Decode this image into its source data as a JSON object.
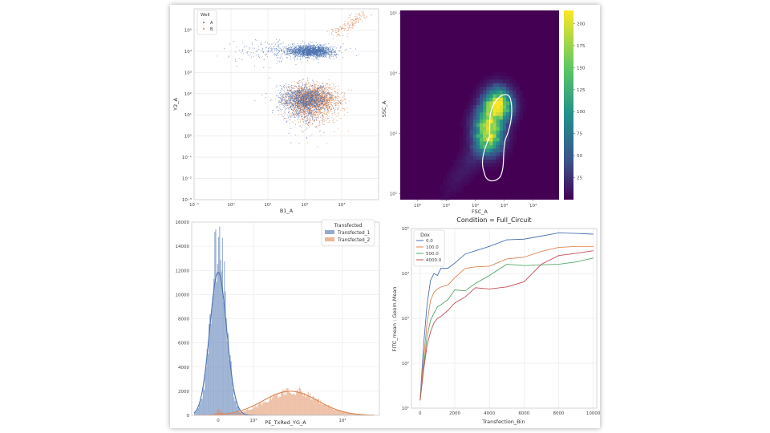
{
  "chart_data": [
    {
      "id": "p1",
      "type": "scatter",
      "title": "",
      "xlabel": "B1_A",
      "ylabel": "Y2_A",
      "xscale": "log",
      "yscale": "log",
      "xlim": [
        0.1,
        10000
      ],
      "ylim": [
        0.001,
        1000000
      ],
      "x_ticks": [
        "10⁻¹",
        "10⁰",
        "10¹",
        "10²",
        "10³"
      ],
      "y_ticks": [
        "10⁻³",
        "10⁻²",
        "10⁻¹",
        "10⁰",
        "10¹",
        "10²",
        "10³",
        "10⁴",
        "10⁵"
      ],
      "grid": true,
      "legend": {
        "title": "Well",
        "placement": "top-left",
        "entries": [
          "A",
          "B"
        ]
      },
      "series": [
        {
          "name": "A",
          "color": "#4c72b0",
          "clusters": [
            {
              "x_center": 200,
              "y_center": 10000,
              "n": 1400
            },
            {
              "x_center": 100,
              "y_center": 80,
              "n": 1300
            },
            {
              "x_center": 30,
              "y_center": 10000,
              "n": 300,
              "spread": "wide-x"
            }
          ]
        },
        {
          "name": "B",
          "color": "#dd8452",
          "clusters": [
            {
              "x_center": 150,
              "y_center": 80,
              "n": 2200
            },
            {
              "x_center": 1500,
              "y_center": 200000,
              "n": 160
            }
          ]
        }
      ]
    },
    {
      "id": "p2",
      "type": "heatmap",
      "title": "",
      "xlabel": "FSC_A",
      "ylabel": "SSC_A",
      "xscale": "log",
      "yscale": "log",
      "x_ticks": [
        "10⁰",
        "10¹",
        "10²",
        "10³",
        "10⁴"
      ],
      "y_ticks": [
        "10²",
        "10³",
        "10⁴",
        "10⁵"
      ],
      "colormap": "viridis",
      "colorbar": {
        "range": [
          0,
          215
        ],
        "ticks": [
          25,
          50,
          75,
          100,
          125,
          150,
          175,
          200
        ]
      },
      "density_peaks": [
        {
          "x": 600,
          "y": 3000,
          "value": 215
        },
        {
          "x": 250,
          "y": 1500,
          "value": 110
        },
        {
          "x": 300,
          "y": 800,
          "value": 140
        }
      ],
      "contour": "white"
    },
    {
      "id": "p3",
      "type": "histogram",
      "title": "",
      "xlabel": "PE_TxRed_YG_A",
      "ylabel": "",
      "xscale": "symlog",
      "x_ticks": [
        "10²",
        "10⁴"
      ],
      "ylim": [
        0,
        16000
      ],
      "y_ticks": [
        0,
        2000,
        4000,
        6000,
        8000,
        10000,
        12000,
        14000,
        16000
      ],
      "grid": true,
      "legend": {
        "title": "Transfected",
        "placement": "top-right",
        "entries": [
          "Transfected_1",
          "Transfected_2"
        ]
      },
      "series": [
        {
          "name": "Transfected_1",
          "color": "#4c72b0",
          "peak_count": 15800,
          "center": "≈0",
          "kde_peak": 11800
        },
        {
          "name": "Transfected_2",
          "color": "#dd8452",
          "peak_count": 2100,
          "center": "≈10³",
          "kde_peak": 2000
        }
      ]
    },
    {
      "id": "p4",
      "type": "line",
      "title": "Condition = Full_Circuit",
      "xlabel": "Transfection_Bin",
      "ylabel": "FITC_mean : Geom.Mean",
      "yscale": "log",
      "xlim": [
        -500,
        10200
      ],
      "ylim": [
        10,
        100000
      ],
      "x_ticks": [
        0,
        2000,
        4000,
        6000,
        8000,
        10000
      ],
      "y_ticks": [
        "10¹",
        "10²",
        "10³",
        "10⁴",
        "10⁵"
      ],
      "grid": true,
      "legend": {
        "title": "Dox",
        "placement": "top-left"
      },
      "x": [
        0,
        200,
        400,
        600,
        800,
        1000,
        1200,
        1600,
        2000,
        2600,
        3200,
        4000,
        5000,
        6000,
        7000,
        8000,
        9000,
        10000
      ],
      "series": [
        {
          "name": "0.0",
          "color": "#4c72b0",
          "values": [
            15,
            250,
            2000,
            7000,
            10000,
            9000,
            13000,
            13000,
            17000,
            27000,
            32000,
            40000,
            56000,
            58000,
            68000,
            80000,
            78000,
            75000
          ]
        },
        {
          "name": "100.0",
          "color": "#dd8452",
          "values": [
            15,
            120,
            800,
            2500,
            3800,
            4500,
            5000,
            5500,
            8000,
            13000,
            14000,
            14500,
            21000,
            23000,
            31000,
            38000,
            40000,
            40000
          ]
        },
        {
          "name": "500.0",
          "color": "#55a868",
          "values": [
            15,
            80,
            400,
            900,
            1300,
            1800,
            2000,
            2600,
            4300,
            4100,
            6000,
            9000,
            16000,
            15000,
            15500,
            16000,
            18000,
            22000
          ]
        },
        {
          "name": "4000.0",
          "color": "#c44e52",
          "values": [
            15,
            70,
            250,
            500,
            800,
            1000,
            1100,
            1500,
            2200,
            3000,
            4800,
            4500,
            5000,
            6500,
            16000,
            25000,
            28000,
            32000
          ]
        }
      ]
    }
  ]
}
